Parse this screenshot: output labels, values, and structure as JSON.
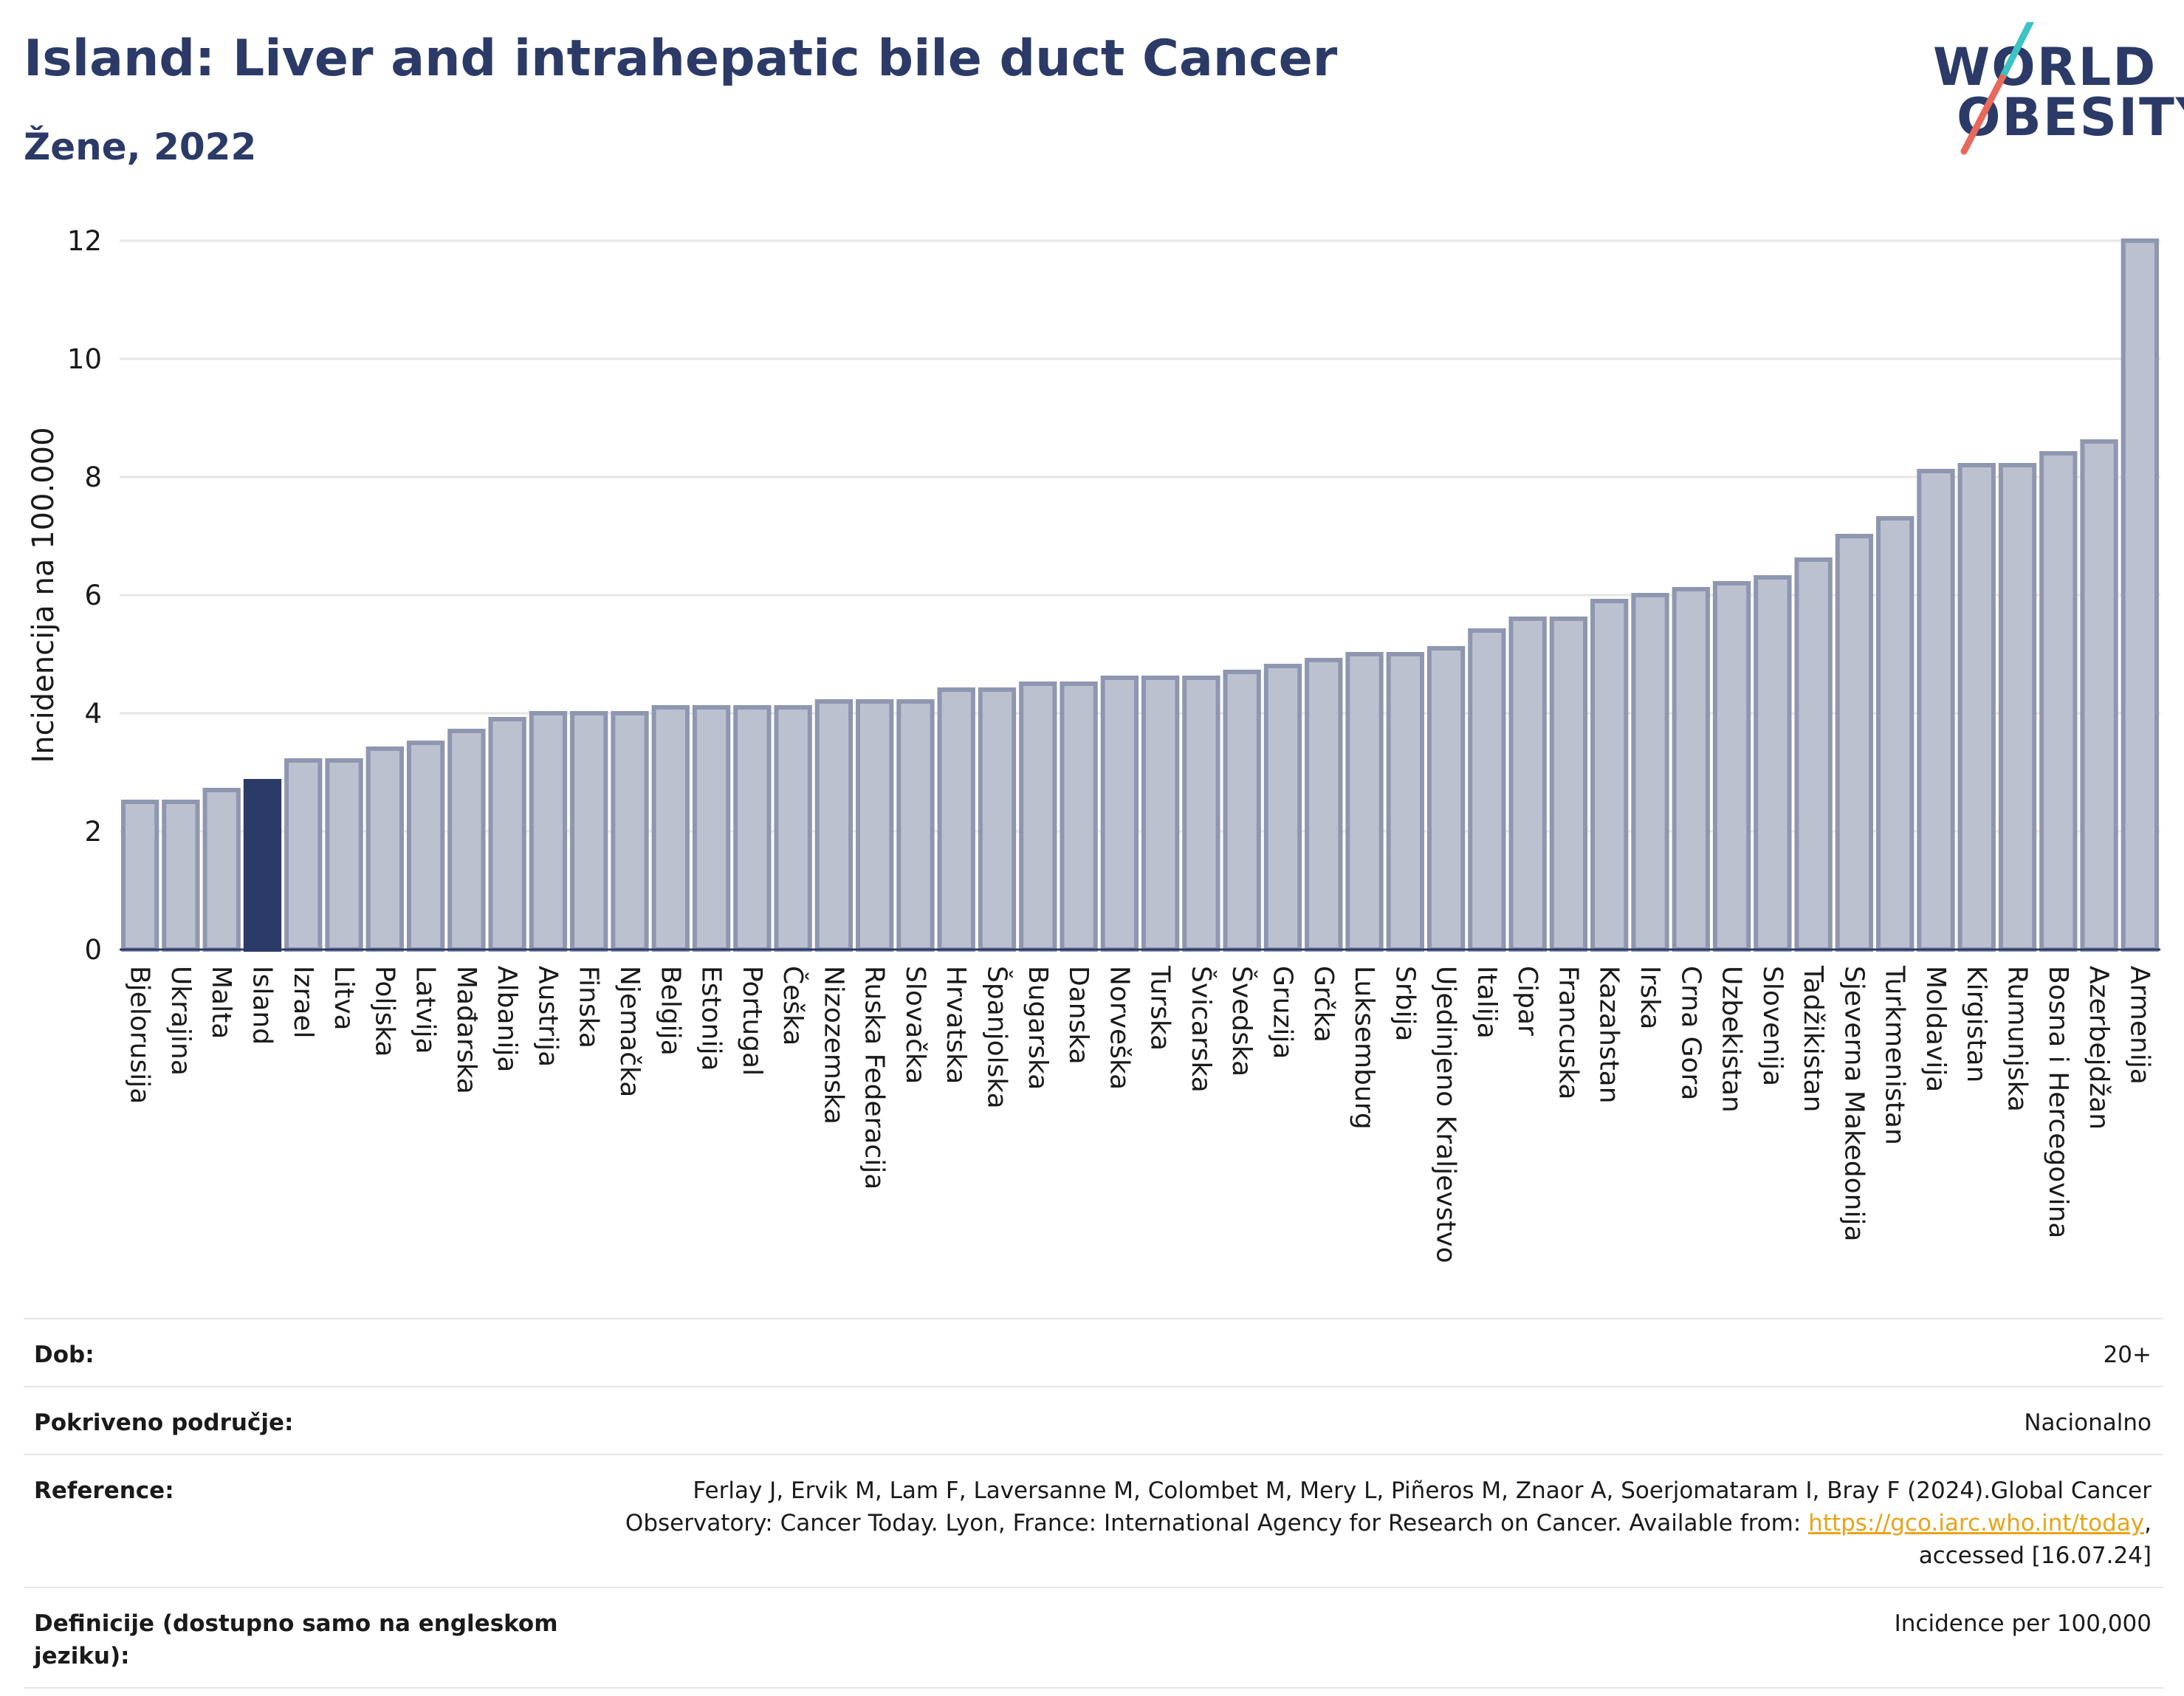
{
  "header": {
    "title": "Island: Liver and intrahepatic bile duct Cancer",
    "subtitle": "Žene, 2022"
  },
  "logo": {
    "line1": "WORLD",
    "line2": "OBESITY",
    "slash_colors": [
      "#3cc3c3",
      "#e8695a"
    ]
  },
  "colors": {
    "bar_default": "#bcc1cf",
    "bar_default_stroke": "#8f96b0",
    "bar_highlight": "#2b3a67",
    "axis_text": "#1a1a1a",
    "grid": "#e6e6e6",
    "link": "#e8a317"
  },
  "chart_data": {
    "type": "bar",
    "ylabel": "Incidencija na 100.000",
    "ylim": [
      0,
      12
    ],
    "yticks": [
      "0",
      "2",
      "4",
      "6",
      "8",
      "10",
      "12"
    ],
    "highlight": "Island",
    "grid": true,
    "categories": [
      "Bjelorusija",
      "Ukrajina",
      "Malta",
      "Island",
      "Izrael",
      "Litva",
      "Poljska",
      "Latvija",
      "Mađarska",
      "Albanija",
      "Austrija",
      "Finska",
      "Njemačka",
      "Belgija",
      "Estonija",
      "Portugal",
      "Češka",
      "Nizozemska",
      "Ruska Federacija",
      "Slovačka",
      "Hrvatska",
      "Španjolska",
      "Bugarska",
      "Danska",
      "Norveška",
      "Turska",
      "Švicarska",
      "Švedska",
      "Gruzija",
      "Grčka",
      "Luksemburg",
      "Srbija",
      "Ujedinjeno Kraljevstvo",
      "Italija",
      "Cipar",
      "Francuska",
      "Kazahstan",
      "Irska",
      "Crna Gora",
      "Uzbekistan",
      "Slovenija",
      "Tadžikistan",
      "Sjeverna Makedonija",
      "Turkmenistan",
      "Moldavija",
      "Kirgistan",
      "Rumunjska",
      "Bosna i Hercegovina",
      "Azerbejdžan",
      "Armenija"
    ],
    "values": [
      2.5,
      2.5,
      2.7,
      2.85,
      3.2,
      3.2,
      3.4,
      3.5,
      3.7,
      3.9,
      4.0,
      4.0,
      4.0,
      4.1,
      4.1,
      4.1,
      4.1,
      4.2,
      4.2,
      4.2,
      4.4,
      4.4,
      4.5,
      4.5,
      4.6,
      4.6,
      4.6,
      4.7,
      4.8,
      4.9,
      5.0,
      5.0,
      5.1,
      5.4,
      5.6,
      5.6,
      5.9,
      6.0,
      6.1,
      6.2,
      6.3,
      6.6,
      7.0,
      7.3,
      8.1,
      8.2,
      8.2,
      8.4,
      8.6,
      12.0
    ]
  },
  "info": {
    "age_label": "Dob:",
    "age_value": "20+",
    "coverage_label": "Pokriveno područje:",
    "coverage_value": "Nacionalno",
    "reference_label": "Reference:",
    "reference_line1": "Ferlay J, Ervik M, Lam F, Laversanne M, Colombet M, Mery L, Piñeros M, Znaor A, Soerjomataram I, Bray F (2024).Global Cancer",
    "reference_line2_pre": "Observatory: Cancer Today. Lyon, France: International Agency for Research on Cancer. Available from: ",
    "reference_link": "https://gco.iarc.who.int/today",
    "reference_line2_post": ",",
    "reference_line3": "accessed [16.07.24]",
    "definitions_label": "Definicije (dostupno samo na engleskom jeziku):",
    "definitions_value": "Incidence per 100,000"
  }
}
